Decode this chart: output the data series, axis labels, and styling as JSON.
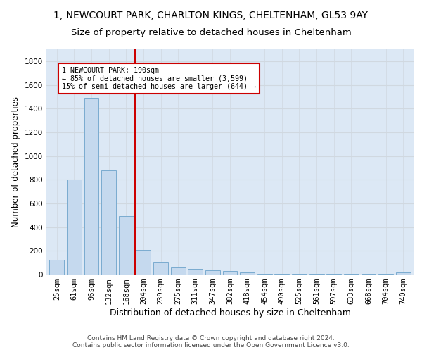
{
  "title": "1, NEWCOURT PARK, CHARLTON KINGS, CHELTENHAM, GL53 9AY",
  "subtitle": "Size of property relative to detached houses in Cheltenham",
  "xlabel": "Distribution of detached houses by size in Cheltenham",
  "ylabel": "Number of detached properties",
  "footer_line1": "Contains HM Land Registry data © Crown copyright and database right 2024.",
  "footer_line2": "Contains public sector information licensed under the Open Government Licence v3.0.",
  "bar_labels": [
    "25sqm",
    "61sqm",
    "96sqm",
    "132sqm",
    "168sqm",
    "204sqm",
    "239sqm",
    "275sqm",
    "311sqm",
    "347sqm",
    "382sqm",
    "418sqm",
    "454sqm",
    "490sqm",
    "525sqm",
    "561sqm",
    "597sqm",
    "633sqm",
    "668sqm",
    "704sqm",
    "740sqm"
  ],
  "bar_values": [
    125,
    800,
    1490,
    880,
    490,
    205,
    105,
    65,
    45,
    33,
    27,
    15,
    5,
    3,
    3,
    3,
    3,
    3,
    3,
    3,
    15
  ],
  "bar_color": "#c5d9ee",
  "bar_edge_color": "#7aabcf",
  "annotation_line1": "1 NEWCOURT PARK: 190sqm",
  "annotation_line2": "← 85% of detached houses are smaller (3,599)",
  "annotation_line3": "15% of semi-detached houses are larger (644) →",
  "vline_x": 4.5,
  "vline_color": "#cc0000",
  "annotation_box_color": "#cc0000",
  "ylim": [
    0,
    1900
  ],
  "yticks": [
    0,
    200,
    400,
    600,
    800,
    1000,
    1200,
    1400,
    1600,
    1800
  ],
  "grid_color": "#d0d8e0",
  "axes_bg_color": "#dce8f5",
  "fig_bg_color": "#ffffff",
  "title_fontsize": 10,
  "subtitle_fontsize": 9.5,
  "ylabel_fontsize": 8.5,
  "xlabel_fontsize": 9,
  "tick_fontsize": 7.5,
  "footer_fontsize": 6.5
}
